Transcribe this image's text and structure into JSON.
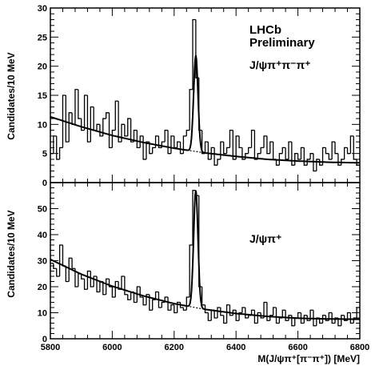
{
  "chart_data": [
    {
      "type": "histogram",
      "annotations": [
        "LHCb",
        "Preliminary",
        "J/ψπ⁺π⁻π⁺"
      ],
      "ylabel": "Candidates/10 MeV",
      "xlim": [
        5800,
        6800
      ],
      "ylim": [
        0,
        30
      ],
      "xticks": [
        5800,
        6000,
        6200,
        6400,
        6600,
        6800
      ],
      "yticks": [
        0,
        5,
        10,
        15,
        20,
        25,
        30
      ],
      "bin_width": 10,
      "x": [
        5805,
        5815,
        5825,
        5835,
        5845,
        5855,
        5865,
        5875,
        5885,
        5895,
        5905,
        5915,
        5925,
        5935,
        5945,
        5955,
        5965,
        5975,
        5985,
        5995,
        6005,
        6015,
        6025,
        6035,
        6045,
        6055,
        6065,
        6075,
        6085,
        6095,
        6105,
        6115,
        6125,
        6135,
        6145,
        6155,
        6165,
        6175,
        6185,
        6195,
        6205,
        6215,
        6225,
        6235,
        6245,
        6255,
        6265,
        6275,
        6285,
        6295,
        6305,
        6315,
        6325,
        6335,
        6345,
        6355,
        6365,
        6375,
        6385,
        6395,
        6405,
        6415,
        6425,
        6435,
        6445,
        6455,
        6465,
        6475,
        6485,
        6495,
        6505,
        6515,
        6525,
        6535,
        6545,
        6555,
        6565,
        6575,
        6585,
        6595,
        6605,
        6615,
        6625,
        6635,
        6645,
        6655,
        6665,
        6675,
        6685,
        6695,
        6705,
        6715,
        6725,
        6735,
        6745,
        6755,
        6765,
        6775,
        6785,
        6795
      ],
      "counts": [
        5,
        8,
        4,
        6,
        15,
        7,
        12,
        10,
        16,
        11,
        9,
        15,
        7,
        13,
        9,
        10,
        8,
        11,
        12,
        6,
        9,
        14,
        7,
        10,
        8,
        11,
        7,
        9,
        6,
        8,
        4,
        7,
        5,
        6,
        8,
        6,
        7,
        9,
        5,
        8,
        6,
        7,
        5,
        8,
        9,
        16,
        28,
        18,
        9,
        5,
        7,
        4,
        6,
        3,
        4,
        7,
        5,
        6,
        9,
        4,
        8,
        6,
        4,
        5,
        6,
        9,
        4,
        5,
        6,
        8,
        5,
        7,
        4,
        3,
        5,
        6,
        4,
        7,
        3,
        5,
        4,
        6,
        3,
        4,
        5,
        2,
        4,
        3,
        6,
        5,
        4,
        7,
        5,
        3,
        4,
        6,
        5,
        8,
        4,
        3
      ],
      "fit": {
        "signal_mean": 6270,
        "signal_sigma": 7,
        "signal_peak": 16.5,
        "background": [
          [
            5800,
            11.3
          ],
          [
            5900,
            9.6
          ],
          [
            6000,
            8.1
          ],
          [
            6100,
            6.9
          ],
          [
            6200,
            5.9
          ],
          [
            6300,
            5.1
          ],
          [
            6400,
            4.5
          ],
          [
            6500,
            4.0
          ],
          [
            6600,
            3.7
          ],
          [
            6700,
            3.5
          ],
          [
            6800,
            3.4
          ]
        ],
        "background_dotted_range": [
          6200,
          6330
        ]
      }
    },
    {
      "type": "histogram",
      "annotations": [
        "J/ψπ⁺"
      ],
      "ylabel": "Candidates/10 MeV",
      "xlabel": "M(J/ψπ⁺[π⁻π⁺]) [MeV]",
      "xlim": [
        5800,
        6800
      ],
      "ylim": [
        0,
        60
      ],
      "xticks": [
        5800,
        6000,
        6200,
        6400,
        6600,
        6800
      ],
      "yticks": [
        0,
        10,
        20,
        30,
        40,
        50
      ],
      "bin_width": 10,
      "x": [
        5805,
        5815,
        5825,
        5835,
        5845,
        5855,
        5865,
        5875,
        5885,
        5895,
        5905,
        5915,
        5925,
        5935,
        5945,
        5955,
        5965,
        5975,
        5985,
        5995,
        6005,
        6015,
        6025,
        6035,
        6045,
        6055,
        6065,
        6075,
        6085,
        6095,
        6105,
        6115,
        6125,
        6135,
        6145,
        6155,
        6165,
        6175,
        6185,
        6195,
        6205,
        6215,
        6225,
        6235,
        6245,
        6255,
        6265,
        6275,
        6285,
        6295,
        6305,
        6315,
        6325,
        6335,
        6345,
        6355,
        6365,
        6375,
        6385,
        6395,
        6405,
        6415,
        6425,
        6435,
        6445,
        6455,
        6465,
        6475,
        6485,
        6495,
        6505,
        6515,
        6525,
        6535,
        6545,
        6555,
        6565,
        6575,
        6585,
        6595,
        6605,
        6615,
        6625,
        6635,
        6645,
        6655,
        6665,
        6675,
        6685,
        6695,
        6705,
        6715,
        6725,
        6735,
        6745,
        6755,
        6765,
        6775,
        6785,
        6795
      ],
      "counts": [
        29,
        27,
        24,
        36,
        28,
        22,
        31,
        27,
        20,
        25,
        23,
        19,
        26,
        20,
        24,
        18,
        22,
        17,
        23,
        20,
        16,
        22,
        19,
        24,
        17,
        15,
        18,
        14,
        20,
        16,
        13,
        17,
        11,
        15,
        18,
        12,
        14,
        16,
        11,
        13,
        10,
        14,
        12,
        11,
        16,
        36,
        57,
        55,
        20,
        13,
        10,
        7,
        11,
        8,
        12,
        9,
        6,
        13,
        9,
        11,
        7,
        10,
        12,
        8,
        9,
        11,
        6,
        10,
        8,
        14,
        7,
        9,
        12,
        6,
        8,
        11,
        7,
        9,
        5,
        8,
        10,
        6,
        9,
        7,
        11,
        5,
        8,
        6,
        9,
        7,
        10,
        6,
        8,
        5,
        9,
        7,
        10,
        6,
        8,
        12
      ],
      "fit": {
        "signal_mean": 6270,
        "signal_sigma": 7,
        "signal_peak": 45,
        "background": [
          [
            5800,
            30.5
          ],
          [
            5900,
            24.8
          ],
          [
            6000,
            20.2
          ],
          [
            6100,
            16.5
          ],
          [
            6200,
            13.5
          ],
          [
            6300,
            11.3
          ],
          [
            6400,
            9.7
          ],
          [
            6500,
            8.6
          ],
          [
            6600,
            7.9
          ],
          [
            6700,
            7.6
          ],
          [
            6800,
            7.5
          ]
        ],
        "background_dotted_range": [
          6200,
          6330
        ]
      }
    }
  ]
}
